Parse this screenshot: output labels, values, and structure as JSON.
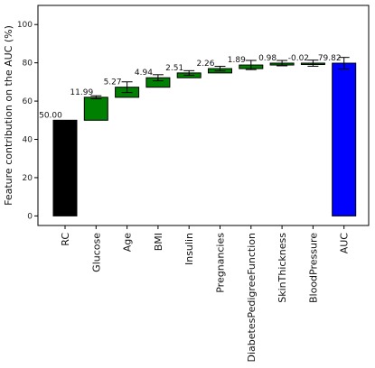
{
  "chart_data": {
    "type": "bar",
    "subtype": "waterfall",
    "ylabel": "Feature contribution on the AUC (%)",
    "ylim": [
      -5,
      110
    ],
    "yticks": [
      0,
      20,
      40,
      60,
      80,
      100
    ],
    "bars": [
      {
        "label": "RC",
        "bottom": 0,
        "top": 50.0,
        "value_label": "50.00",
        "color": "#000000",
        "err": 0
      },
      {
        "label": "Glucose",
        "bottom": 50.0,
        "top": 61.99,
        "value_label": "11.99",
        "color": "#008000",
        "err": 0.8
      },
      {
        "label": "Age",
        "bottom": 61.99,
        "top": 67.26,
        "value_label": "5.27",
        "color": "#008000",
        "err": 2.8
      },
      {
        "label": "BMI",
        "bottom": 67.26,
        "top": 72.2,
        "value_label": "4.94",
        "color": "#008000",
        "err": 1.6
      },
      {
        "label": "Insulin",
        "bottom": 72.2,
        "top": 74.71,
        "value_label": "2.51",
        "color": "#008000",
        "err": 1.2
      },
      {
        "label": "Pregnancies",
        "bottom": 74.71,
        "top": 76.97,
        "value_label": "2.26",
        "color": "#008000",
        "err": 1.2
      },
      {
        "label": "DiabetesPedigreeFunction",
        "bottom": 76.97,
        "top": 78.86,
        "value_label": "1.89",
        "color": "#008000",
        "err": 2.4
      },
      {
        "label": "SkinThickness",
        "bottom": 78.86,
        "top": 79.84,
        "value_label": "0.98",
        "color": "#008000",
        "err": 1.4
      },
      {
        "label": "BloodPressure",
        "bottom": 79.84,
        "top": 79.82,
        "value_label": "-0.02",
        "color": "#008000",
        "err": 1.6
      },
      {
        "label": "AUC",
        "bottom": 0,
        "top": 79.82,
        "value_label": "79.82",
        "color": "#0000ff",
        "err": 3.0
      }
    ],
    "grid": false,
    "legend": "none"
  }
}
